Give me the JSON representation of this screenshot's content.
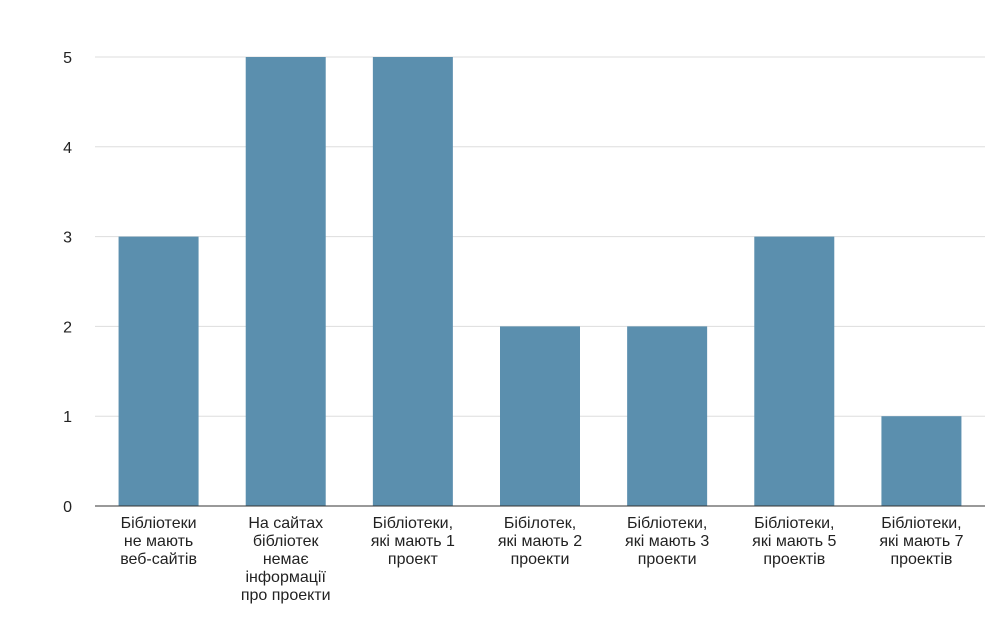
{
  "chart_data": {
    "type": "bar",
    "title": "",
    "xlabel": "",
    "ylabel": "",
    "categories": [
      "Бібліотеки не мають веб-сайтів",
      "На сайтах бібліотек немає інформації про проекти",
      "Бібліотеки, які мають 1 проект",
      "Бібілотек, які мають 2 проекти",
      "Бібліотеки, які мають 3 проекти",
      "Бібліотеки, які мають 5 проектів",
      "Бібліотеки, які мають 7 проектів"
    ],
    "category_lines": [
      [
        "Бібліотеки",
        "не мають",
        "веб-сайтів"
      ],
      [
        "На сайтах",
        "бібліотек",
        "немає",
        "інформації",
        "про проекти"
      ],
      [
        "Бібліотеки,",
        "які мають 1",
        "проект"
      ],
      [
        "Бібілотек,",
        "які мають 2",
        "проекти"
      ],
      [
        "Бібліотеки,",
        "які мають 3",
        "проекти"
      ],
      [
        "Бібліотеки,",
        "які мають 5",
        "проектів"
      ],
      [
        "Бібліотеки,",
        "які мають 7",
        "проектів"
      ]
    ],
    "values": [
      3,
      5,
      5,
      2,
      2,
      3,
      1
    ],
    "ylim": [
      0,
      5
    ],
    "yticks": [
      "0",
      "1",
      "2",
      "3",
      "4",
      "5"
    ],
    "grid": true,
    "legend": "none",
    "colors": {
      "bar": "#5b8fae",
      "grid": "#dddddd",
      "axis": "#333333"
    }
  }
}
